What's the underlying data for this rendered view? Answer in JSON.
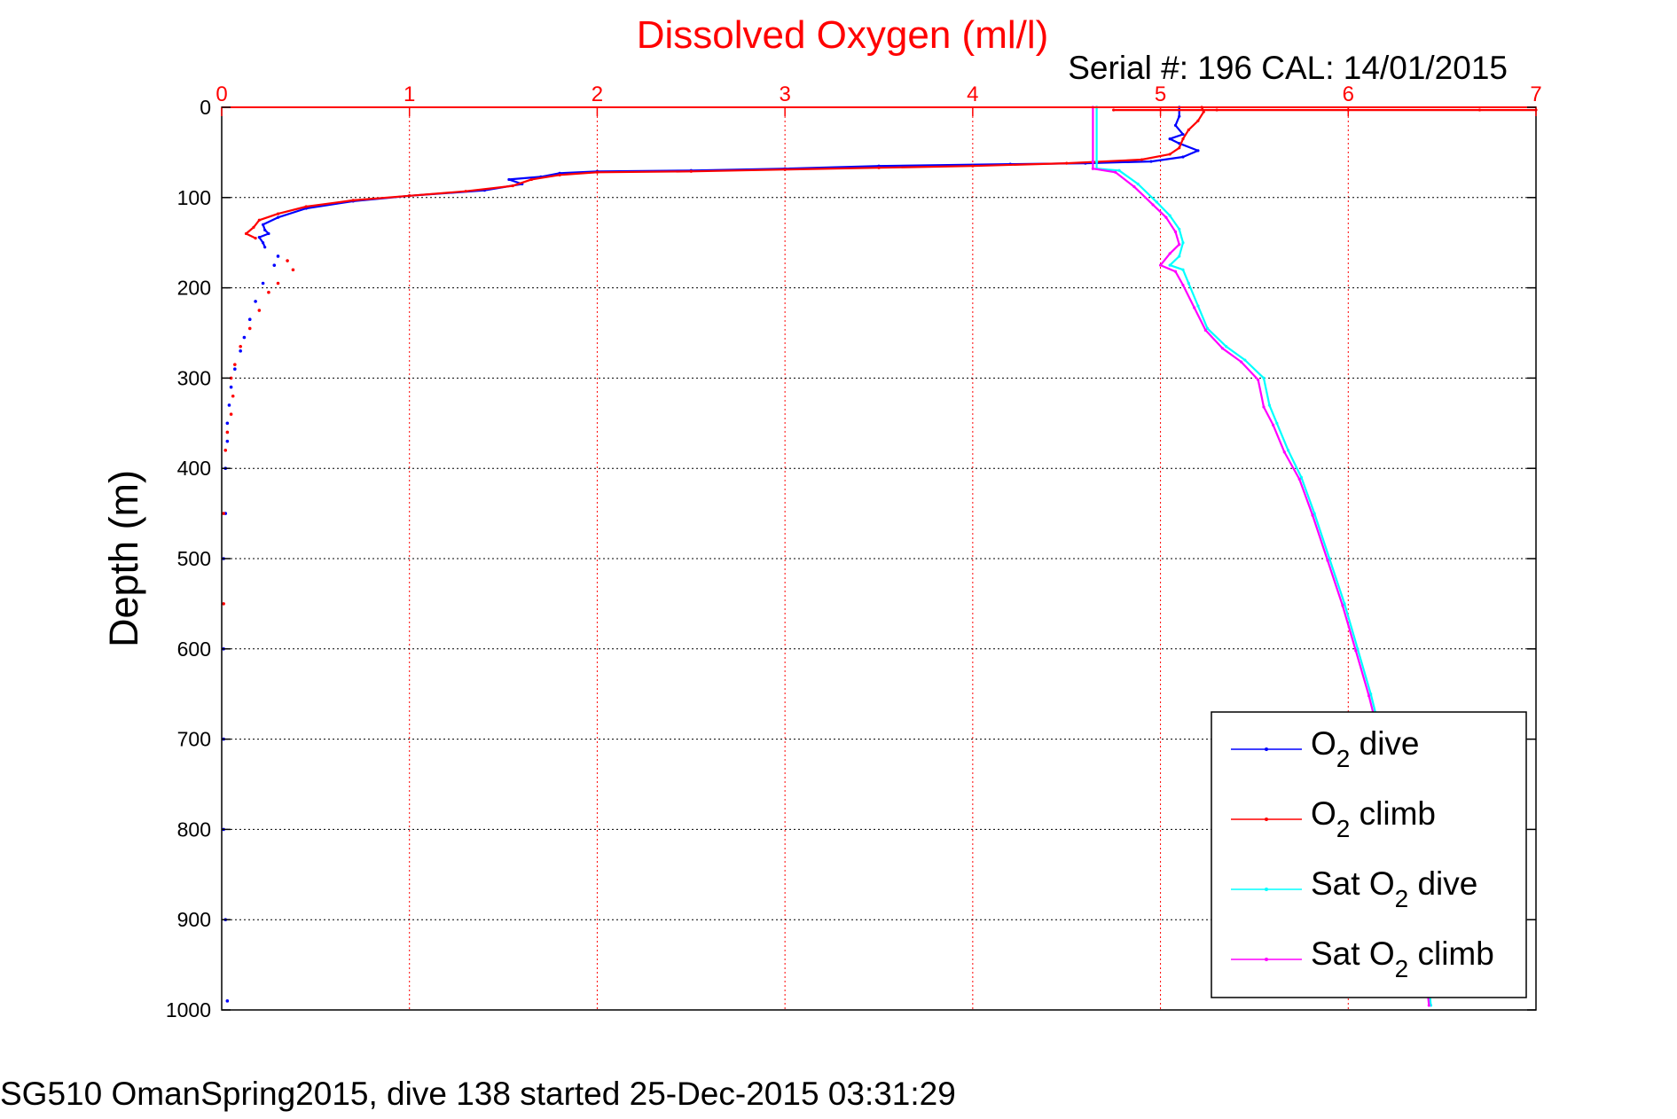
{
  "colors": {
    "o2_dive": "#0000ff",
    "o2_climb": "#ff0000",
    "sat_dive": "#00ffff",
    "sat_climb": "#ff00ff",
    "top_axis": "#ff0000",
    "grid_x": "#ff0000",
    "grid_y": "#000000"
  },
  "footer": "SG510 OmanSpring2015, dive 138 started 25-Dec-2015 03:31:29",
  "chart_data": {
    "type": "line",
    "title": "Dissolved Oxygen (ml/l)",
    "subtitle": "Serial #: 196  CAL: 14/01/2015",
    "xlabel": "",
    "ylabel": "Depth (m)",
    "xlim": [
      0,
      7
    ],
    "ylim": [
      0,
      1000
    ],
    "y_reversed": true,
    "x_axis_position": "top",
    "grid": true,
    "x_ticks": [
      "0",
      "1",
      "2",
      "3",
      "4",
      "5",
      "6",
      "7"
    ],
    "y_ticks": [
      "0",
      "100",
      "200",
      "300",
      "400",
      "500",
      "600",
      "700",
      "800",
      "900",
      "1000"
    ],
    "legend": {
      "placement": "bottom-right",
      "entries": [
        {
          "main": "O",
          "sub": "2",
          "rest": " dive"
        },
        {
          "main": "O",
          "sub": "2",
          "rest": " climb"
        },
        {
          "main": "Sat O",
          "sub": "2",
          "rest": " dive"
        },
        {
          "main": "Sat O",
          "sub": "2",
          "rest": " climb"
        }
      ]
    },
    "series": [
      {
        "name": "O2 dive",
        "style": "line",
        "points": [
          [
            5.1,
            0
          ],
          [
            5.1,
            10
          ],
          [
            5.08,
            20
          ],
          [
            5.12,
            30
          ],
          [
            5.05,
            35
          ],
          [
            5.1,
            40
          ],
          [
            5.2,
            48
          ],
          [
            5.12,
            55
          ],
          [
            4.95,
            60
          ],
          [
            4.6,
            62
          ],
          [
            4.2,
            63
          ],
          [
            3.5,
            65
          ],
          [
            3.0,
            68
          ],
          [
            2.5,
            70
          ],
          [
            2.0,
            71
          ],
          [
            1.8,
            73
          ],
          [
            1.7,
            77
          ],
          [
            1.53,
            80
          ],
          [
            1.6,
            85
          ],
          [
            1.4,
            92
          ],
          [
            1.0,
            98
          ],
          [
            0.7,
            104
          ],
          [
            0.45,
            112
          ],
          [
            0.3,
            122
          ],
          [
            0.22,
            130
          ],
          [
            0.23,
            136
          ],
          [
            0.25,
            140
          ],
          [
            0.2,
            144
          ],
          [
            0.22,
            150
          ],
          [
            0.23,
            155
          ]
        ]
      },
      {
        "name": "O2 climb",
        "style": "line",
        "points": [
          [
            5.22,
            0
          ],
          [
            5.23,
            5
          ],
          [
            5.2,
            15
          ],
          [
            5.15,
            25
          ],
          [
            5.12,
            35
          ],
          [
            5.1,
            45
          ],
          [
            5.05,
            52
          ],
          [
            4.9,
            58
          ],
          [
            4.5,
            62
          ],
          [
            4.0,
            65
          ],
          [
            3.5,
            67
          ],
          [
            3.0,
            69
          ],
          [
            2.5,
            71
          ],
          [
            2.0,
            72
          ],
          [
            1.8,
            75
          ],
          [
            1.65,
            80
          ],
          [
            1.55,
            87
          ],
          [
            1.3,
            93
          ],
          [
            1.0,
            98
          ],
          [
            0.7,
            103
          ],
          [
            0.45,
            110
          ],
          [
            0.3,
            118
          ],
          [
            0.2,
            125
          ],
          [
            0.17,
            133
          ],
          [
            0.13,
            140
          ],
          [
            0.18,
            145
          ]
        ]
      },
      {
        "name": "O2 dive deep",
        "style": "dots",
        "points": [
          [
            0.3,
            165
          ],
          [
            0.28,
            175
          ],
          [
            0.22,
            195
          ],
          [
            0.18,
            215
          ],
          [
            0.15,
            235
          ],
          [
            0.12,
            255
          ],
          [
            0.1,
            270
          ],
          [
            0.07,
            290
          ],
          [
            0.05,
            310
          ],
          [
            0.04,
            330
          ],
          [
            0.03,
            350
          ],
          [
            0.03,
            370
          ],
          [
            0.02,
            400
          ],
          [
            0.02,
            450
          ],
          [
            0.01,
            500
          ],
          [
            0.01,
            600
          ],
          [
            0.01,
            700
          ],
          [
            0.01,
            800
          ],
          [
            0.02,
            900
          ],
          [
            0.03,
            990
          ]
        ]
      },
      {
        "name": "O2 climb deep",
        "style": "dots",
        "points": [
          [
            0.35,
            170
          ],
          [
            0.38,
            180
          ],
          [
            0.3,
            195
          ],
          [
            0.25,
            205
          ],
          [
            0.2,
            225
          ],
          [
            0.15,
            245
          ],
          [
            0.1,
            265
          ],
          [
            0.07,
            285
          ],
          [
            0.05,
            300
          ],
          [
            0.06,
            320
          ],
          [
            0.05,
            340
          ],
          [
            0.03,
            360
          ],
          [
            0.02,
            380
          ],
          [
            0.01,
            450
          ],
          [
            0.01,
            550
          ]
        ]
      },
      {
        "name": "Sat O2 dive",
        "style": "line",
        "points": [
          [
            4.66,
            0
          ],
          [
            4.66,
            60
          ],
          [
            4.66,
            68
          ],
          [
            4.78,
            70
          ],
          [
            4.88,
            85
          ],
          [
            4.98,
            105
          ],
          [
            5.05,
            120
          ],
          [
            5.1,
            135
          ],
          [
            5.12,
            150
          ],
          [
            5.1,
            165
          ],
          [
            5.05,
            175
          ],
          [
            5.12,
            180
          ],
          [
            5.15,
            195
          ],
          [
            5.2,
            220
          ],
          [
            5.25,
            245
          ],
          [
            5.35,
            265
          ],
          [
            5.45,
            280
          ],
          [
            5.55,
            300
          ],
          [
            5.58,
            330
          ],
          [
            5.62,
            350
          ],
          [
            5.68,
            380
          ],
          [
            5.75,
            410
          ],
          [
            5.82,
            450
          ],
          [
            5.9,
            500
          ],
          [
            5.98,
            550
          ],
          [
            6.05,
            600
          ],
          [
            6.12,
            650
          ],
          [
            6.18,
            700
          ],
          [
            6.24,
            750
          ],
          [
            6.29,
            800
          ],
          [
            6.34,
            850
          ],
          [
            6.39,
            900
          ],
          [
            6.42,
            950
          ],
          [
            6.44,
            995
          ]
        ]
      },
      {
        "name": "Sat O2 climb",
        "style": "line",
        "points": [
          [
            4.64,
            0
          ],
          [
            4.64,
            60
          ],
          [
            4.64,
            68
          ],
          [
            4.76,
            72
          ],
          [
            4.86,
            88
          ],
          [
            4.96,
            108
          ],
          [
            5.03,
            122
          ],
          [
            5.08,
            138
          ],
          [
            5.1,
            152
          ],
          [
            5.05,
            162
          ],
          [
            5.0,
            175
          ],
          [
            5.08,
            182
          ],
          [
            5.12,
            197
          ],
          [
            5.18,
            222
          ],
          [
            5.24,
            247
          ],
          [
            5.33,
            267
          ],
          [
            5.43,
            282
          ],
          [
            5.52,
            302
          ],
          [
            5.55,
            332
          ],
          [
            5.6,
            352
          ],
          [
            5.66,
            382
          ],
          [
            5.74,
            412
          ],
          [
            5.81,
            452
          ],
          [
            5.89,
            502
          ],
          [
            5.97,
            552
          ],
          [
            6.04,
            602
          ],
          [
            6.11,
            652
          ],
          [
            6.17,
            702
          ],
          [
            6.23,
            752
          ],
          [
            6.28,
            802
          ],
          [
            6.33,
            852
          ],
          [
            6.38,
            902
          ],
          [
            6.41,
            952
          ],
          [
            6.43,
            995
          ]
        ]
      },
      {
        "name": "climb surface",
        "style": "line",
        "points": [
          [
            4.75,
            3
          ],
          [
            5.3,
            3
          ],
          [
            6.0,
            3
          ],
          [
            6.7,
            3
          ],
          [
            7.0,
            3
          ]
        ]
      }
    ]
  }
}
